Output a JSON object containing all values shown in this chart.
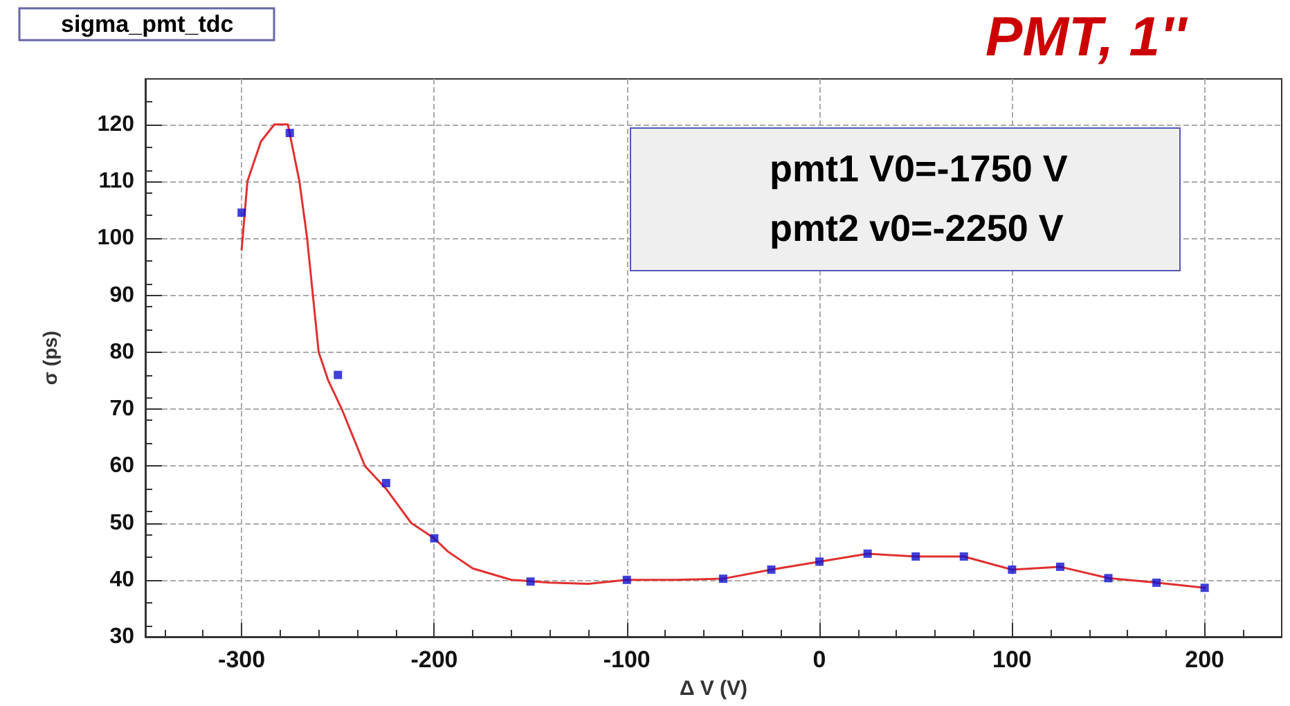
{
  "chart_data": {
    "type": "scatter",
    "title": "sigma_pmt_tdc",
    "subtitle": "PMT, 1''",
    "xlabel": "Δ V (V)",
    "ylabel": "σ (ps)",
    "annotations": [
      "pmt1 V0=-1750 V",
      "pmt2 v0=-2250 V"
    ],
    "xlim": [
      -350,
      240
    ],
    "xticks": [
      -300,
      -200,
      -100,
      0,
      100,
      200
    ],
    "ylim": [
      30,
      128
    ],
    "yticks": [
      30,
      40,
      50,
      60,
      70,
      80,
      90,
      100,
      110,
      120
    ],
    "grid": true,
    "series": [
      {
        "type": "line",
        "color": "#e03030",
        "marker": "none",
        "line_style": "solid",
        "x": [
          -300,
          -297,
          -290,
          -283,
          -276,
          -270,
          -266,
          -263,
          -260,
          -255,
          -248,
          -236,
          -225,
          -212,
          -200,
          -193,
          -180,
          -160,
          -140,
          -120,
          -100,
          -75,
          -50,
          -25,
          0,
          25,
          50,
          75,
          100,
          125,
          150,
          175,
          200
        ],
        "values": [
          98,
          110,
          117,
          120,
          120,
          110,
          100,
          90,
          80,
          75,
          70,
          60,
          56,
          50,
          47.3,
          45,
          42,
          40,
          39.5,
          39.3,
          40,
          40,
          40.2,
          41.8,
          43.2,
          44.6,
          44.1,
          44.1,
          41.8,
          42.3,
          40.3,
          39.5,
          38.6
        ]
      },
      {
        "color": "#1010d0",
        "marker": "square",
        "x": [
          -300,
          -275,
          -250,
          -225,
          -200,
          -150,
          -100,
          -50,
          -25,
          0,
          25,
          50,
          75,
          100,
          125,
          150,
          175,
          200
        ],
        "values": [
          104.5,
          118.5,
          76,
          57,
          47.3,
          39.7,
          40,
          40.2,
          41.8,
          43.2,
          44.6,
          44.1,
          44.1,
          41.8,
          42.3,
          40.3,
          39.5,
          38.6
        ]
      }
    ]
  }
}
